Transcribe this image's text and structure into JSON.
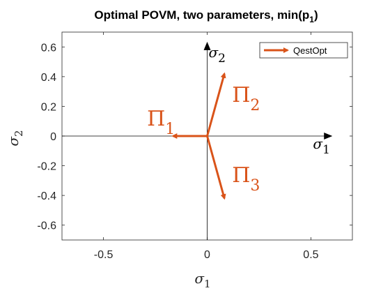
{
  "chart_data": {
    "type": "quiver",
    "title": {
      "main": "Optimal POVM, two parameters, min(p",
      "subscript": "1",
      "close": ")"
    },
    "xlabel": {
      "symbol": "σ",
      "subscript": "1"
    },
    "ylabel": {
      "symbol": "σ",
      "subscript": "2"
    },
    "xlim": [
      -0.7,
      0.7
    ],
    "ylim": [
      -0.7,
      0.7
    ],
    "xticks": [
      -0.5,
      0,
      0.5
    ],
    "xtick_labels": [
      "-0.5",
      "0",
      "0.5"
    ],
    "yticks": [
      -0.6,
      -0.4,
      -0.2,
      0,
      0.2,
      0.4,
      0.6
    ],
    "ytick_labels": [
      "-0.6",
      "-0.4",
      "-0.2",
      "0",
      "0.2",
      "0.4",
      "0.6"
    ],
    "grid": false,
    "legend": {
      "position": "top-right",
      "entries": [
        "QestOpt"
      ]
    },
    "series": [
      {
        "name": "QestOpt",
        "color": "#D95319",
        "vectors": [
          {
            "x0": 0,
            "y0": 0,
            "u": -0.165,
            "v": 0.0
          },
          {
            "x0": 0,
            "y0": 0,
            "u": 0.083,
            "v": 0.42
          },
          {
            "x0": 0,
            "y0": 0,
            "u": 0.083,
            "v": -0.42
          }
        ]
      }
    ],
    "inner_axes": {
      "color": "#000000",
      "x_arrow_end": [
        0.6,
        0
      ],
      "y_arrow_end": [
        0,
        0.63
      ],
      "x_label": {
        "symbol": "σ",
        "subscript": "1"
      },
      "y_label": {
        "symbol": "σ",
        "subscript": "2"
      }
    },
    "annotations": [
      {
        "symbol": "Π",
        "subscript": "1",
        "x": -0.29,
        "y": 0.07
      },
      {
        "symbol": "Π",
        "subscript": "2",
        "x": 0.12,
        "y": 0.23
      },
      {
        "symbol": "Π",
        "subscript": "3",
        "x": 0.12,
        "y": -0.31
      }
    ]
  }
}
